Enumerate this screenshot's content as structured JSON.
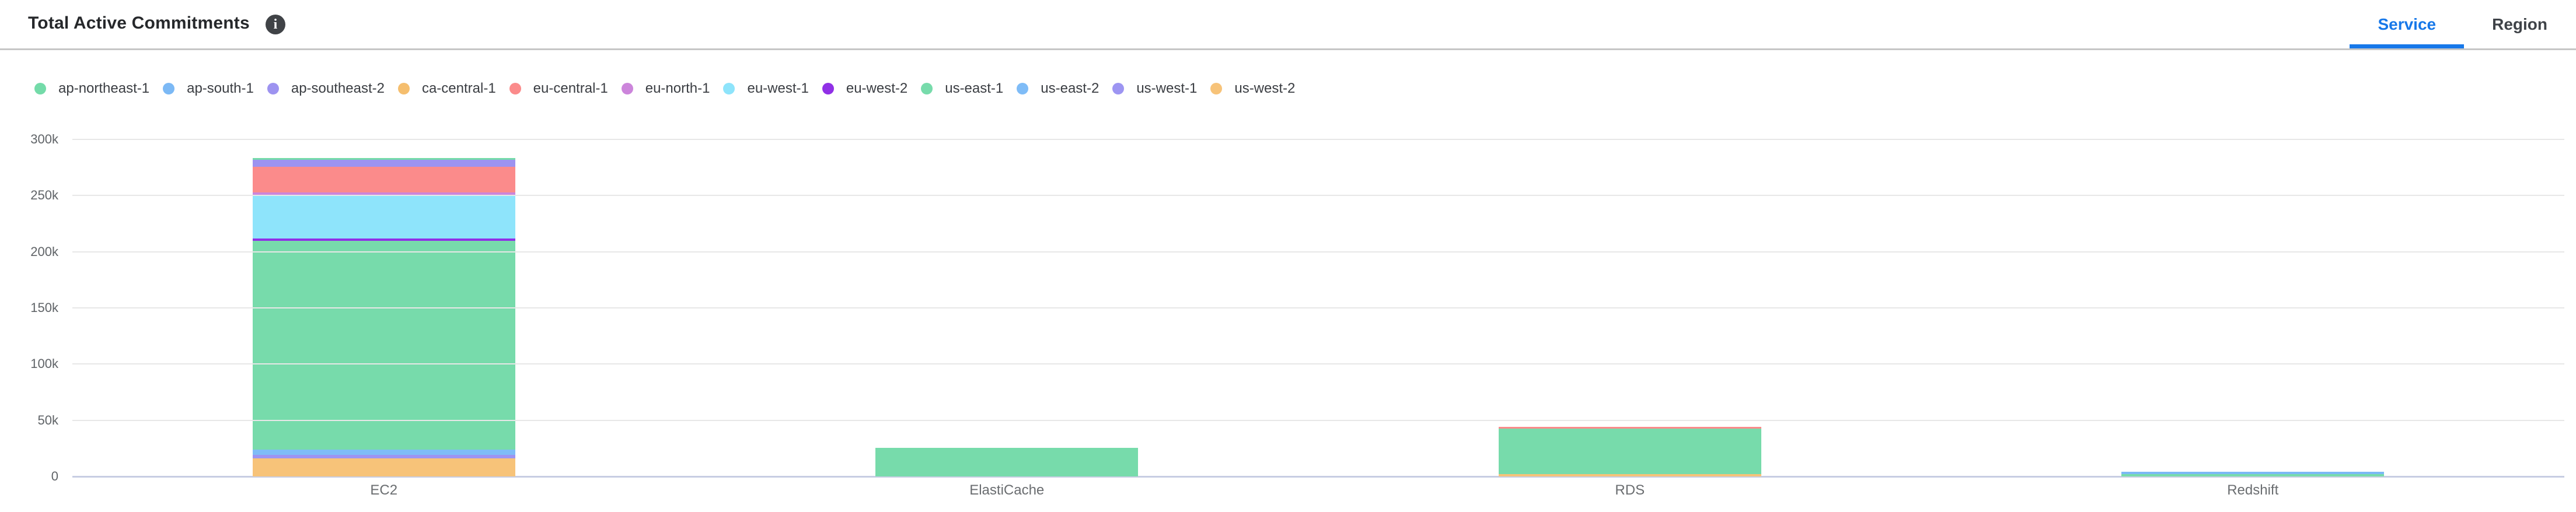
{
  "header": {
    "title": "Total Active Commitments",
    "info_icon_glyph": "i",
    "tabs": [
      {
        "label": "Service",
        "active": true
      },
      {
        "label": "Region",
        "active": false
      }
    ]
  },
  "legend": {
    "items": [
      {
        "label": "ap-northeast-1",
        "color": "#74DBA9"
      },
      {
        "label": "ap-south-1",
        "color": "#7CB9F5"
      },
      {
        "label": "ap-southeast-2",
        "color": "#9D93F0"
      },
      {
        "label": "ca-central-1",
        "color": "#F5BE6E"
      },
      {
        "label": "eu-central-1",
        "color": "#FB8B8B"
      },
      {
        "label": "eu-north-1",
        "color": "#CC85DB"
      },
      {
        "label": "eu-west-1",
        "color": "#8EE4FB"
      },
      {
        "label": "eu-west-2",
        "color": "#9030E6"
      },
      {
        "label": "us-east-1",
        "color": "#77DBAB"
      },
      {
        "label": "us-east-2",
        "color": "#7FBCF7"
      },
      {
        "label": "us-west-1",
        "color": "#9D95F2"
      },
      {
        "label": "us-west-2",
        "color": "#F7C379"
      }
    ]
  },
  "chart_data": {
    "type": "bar",
    "stacked": true,
    "stack_order": "first-series-on-top",
    "title": "Total Active Commitments",
    "categories": [
      "EC2",
      "ElastiCache",
      "RDS",
      "Redshift"
    ],
    "series": [
      {
        "name": "ap-northeast-1",
        "color": "#74DBA9",
        "values": [
          1300,
          0,
          0,
          0
        ]
      },
      {
        "name": "ap-south-1",
        "color": "#7CB9F5",
        "values": [
          0,
          0,
          0,
          2300
        ]
      },
      {
        "name": "ap-southeast-2",
        "color": "#9D93F0",
        "values": [
          6700,
          0,
          0,
          0
        ]
      },
      {
        "name": "ca-central-1",
        "color": "#F5BE6E",
        "values": [
          0,
          0,
          0,
          0
        ]
      },
      {
        "name": "eu-central-1",
        "color": "#FB8B8B",
        "values": [
          22600,
          0,
          1600,
          0
        ]
      },
      {
        "name": "eu-north-1",
        "color": "#CC85DB",
        "values": [
          2600,
          0,
          0,
          0
        ]
      },
      {
        "name": "eu-west-1",
        "color": "#8EE4FB",
        "values": [
          38400,
          0,
          0,
          0
        ]
      },
      {
        "name": "eu-west-2",
        "color": "#9030E6",
        "values": [
          2100,
          0,
          0,
          0
        ]
      },
      {
        "name": "us-east-1",
        "color": "#77DBAB",
        "values": [
          185800,
          25400,
          40500,
          2000
        ]
      },
      {
        "name": "us-east-2",
        "color": "#7FBCF7",
        "values": [
          4700,
          0,
          0,
          0
        ]
      },
      {
        "name": "us-west-1",
        "color": "#9D95F2",
        "values": [
          3100,
          0,
          0,
          0
        ]
      },
      {
        "name": "us-west-2",
        "color": "#F7C379",
        "values": [
          16100,
          0,
          2100,
          0
        ]
      }
    ],
    "ylim": [
      0,
      300000
    ],
    "yticks": [
      0,
      50000,
      100000,
      150000,
      200000,
      250000,
      300000
    ],
    "ytick_labels": [
      "0",
      "50k",
      "100k",
      "150k",
      "200k",
      "250k",
      "300k"
    ],
    "grid": true,
    "legend_position": "top"
  },
  "colors": {
    "accent": "#1778E9",
    "tab_inactive_text": "#3F4348",
    "axis_line": "#C7CDE3",
    "gridline": "#E7E7E7",
    "y_tick_label": "#5F6367",
    "category_label": "#6A6D70",
    "header_divider": "#C6C6C6"
  }
}
